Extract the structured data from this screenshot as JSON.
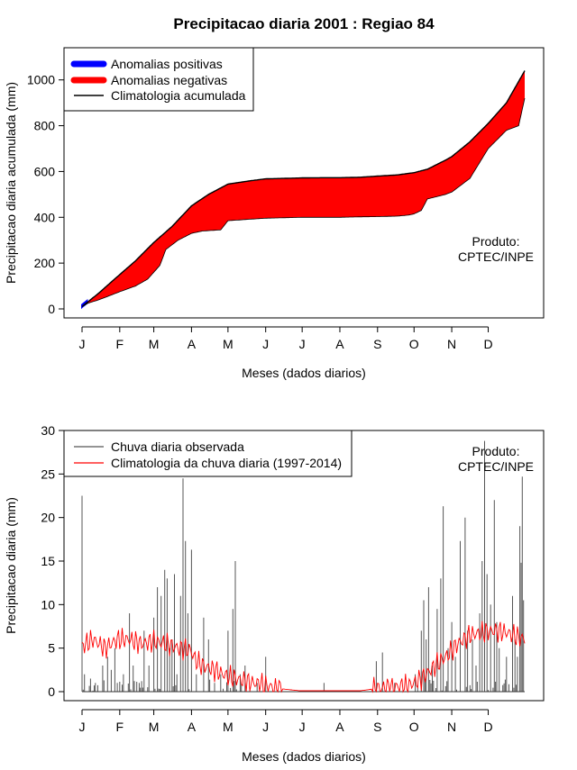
{
  "title": "Precipitacao diaria 2001 : Regiao 84",
  "colors": {
    "positive": "#0000ff",
    "negative": "#ff0000",
    "climatology": "#000000",
    "observed": "#555555",
    "clim_daily": "#ff0000"
  },
  "months": [
    "J",
    "F",
    "M",
    "A",
    "M",
    "J",
    "J",
    "A",
    "S",
    "O",
    "N",
    "D"
  ],
  "chart_data": [
    {
      "type": "area",
      "xlabel": "Meses (dados diarios)",
      "ylabel": "Precipitacao diaria acumulada (mm)",
      "ylim": [
        0,
        1050
      ],
      "yticks": [
        "0",
        "200",
        "400",
        "600",
        "800",
        "1000"
      ],
      "ytick_values": [
        0,
        200,
        400,
        600,
        800,
        1000
      ],
      "legend": [
        "Anomalias positivas",
        "Anomalias negativas",
        "Climatologia acumulada"
      ],
      "product_label": [
        "Produto:",
        "CPTEC/INPE"
      ],
      "climatology_knots": [
        [
          1,
          10
        ],
        [
          15,
          70
        ],
        [
          32,
          150
        ],
        [
          45,
          210
        ],
        [
          60,
          290
        ],
        [
          75,
          360
        ],
        [
          91,
          450
        ],
        [
          105,
          500
        ],
        [
          121,
          545
        ],
        [
          140,
          560
        ],
        [
          152,
          568
        ],
        [
          182,
          572
        ],
        [
          200,
          573
        ],
        [
          213,
          573
        ],
        [
          230,
          575
        ],
        [
          244,
          580
        ],
        [
          260,
          585
        ],
        [
          274,
          595
        ],
        [
          285,
          610
        ],
        [
          300,
          650
        ],
        [
          305,
          665
        ],
        [
          320,
          730
        ],
        [
          335,
          810
        ],
        [
          350,
          900
        ],
        [
          365,
          1040
        ]
      ],
      "observed_knots": [
        [
          1,
          10
        ],
        [
          6,
          25
        ],
        [
          15,
          40
        ],
        [
          32,
          75
        ],
        [
          45,
          100
        ],
        [
          55,
          130
        ],
        [
          65,
          190
        ],
        [
          70,
          260
        ],
        [
          80,
          300
        ],
        [
          91,
          330
        ],
        [
          100,
          340
        ],
        [
          115,
          345
        ],
        [
          121,
          385
        ],
        [
          140,
          392
        ],
        [
          152,
          396
        ],
        [
          182,
          400
        ],
        [
          213,
          400
        ],
        [
          230,
          402
        ],
        [
          244,
          403
        ],
        [
          260,
          405
        ],
        [
          270,
          410
        ],
        [
          274,
          415
        ],
        [
          280,
          430
        ],
        [
          285,
          480
        ],
        [
          300,
          500
        ],
        [
          305,
          510
        ],
        [
          320,
          570
        ],
        [
          335,
          700
        ],
        [
          350,
          780
        ],
        [
          360,
          800
        ],
        [
          365,
          920
        ]
      ]
    },
    {
      "type": "bar",
      "xlabel": "Meses (dados diarios)",
      "ylabel": "Precipitacao diaria (mm)",
      "ylim": [
        0,
        30
      ],
      "yticks": [
        "0",
        "5",
        "10",
        "15",
        "20",
        "25",
        "30"
      ],
      "ytick_values": [
        0,
        5,
        10,
        15,
        20,
        25,
        30
      ],
      "legend": [
        "Chuva diaria observada",
        "Climatologia da chuva diaria (1997-2014)"
      ],
      "product_label": [
        "Produto:",
        "CPTEC/INPE"
      ],
      "observed_spikes": [
        [
          1,
          22.5
        ],
        [
          3,
          2
        ],
        [
          8,
          1.5
        ],
        [
          12,
          1
        ],
        [
          18,
          3
        ],
        [
          22,
          4
        ],
        [
          25,
          2.5
        ],
        [
          28,
          5
        ],
        [
          30,
          1
        ],
        [
          35,
          2
        ],
        [
          40,
          9
        ],
        [
          43,
          3
        ],
        [
          48,
          1
        ],
        [
          52,
          7
        ],
        [
          56,
          3
        ],
        [
          60,
          8.5
        ],
        [
          63,
          12
        ],
        [
          66,
          11
        ],
        [
          69,
          14
        ],
        [
          71,
          13
        ],
        [
          73,
          5
        ],
        [
          75,
          6
        ],
        [
          77,
          13.5
        ],
        [
          79,
          2
        ],
        [
          82,
          11
        ],
        [
          84,
          24.5
        ],
        [
          86,
          17.3
        ],
        [
          88,
          9
        ],
        [
          91,
          16.3
        ],
        [
          95,
          2
        ],
        [
          101,
          8.5
        ],
        [
          105,
          6
        ],
        [
          110,
          1
        ],
        [
          115,
          2
        ],
        [
          121,
          7
        ],
        [
          125,
          9.5
        ],
        [
          127,
          15
        ],
        [
          131,
          2
        ],
        [
          135,
          3
        ],
        [
          145,
          1
        ],
        [
          152,
          4
        ],
        [
          200,
          1
        ],
        [
          243,
          3.5
        ],
        [
          248,
          4.5
        ],
        [
          258,
          1
        ],
        [
          275,
          2
        ],
        [
          280,
          7
        ],
        [
          282,
          10.5
        ],
        [
          284,
          6
        ],
        [
          286,
          12
        ],
        [
          289,
          3
        ],
        [
          293,
          9.5
        ],
        [
          296,
          13
        ],
        [
          298,
          21.3
        ],
        [
          302,
          5
        ],
        [
          305,
          8
        ],
        [
          308,
          4
        ],
        [
          312,
          17.3
        ],
        [
          316,
          20
        ],
        [
          318,
          7
        ],
        [
          322,
          6
        ],
        [
          325,
          3
        ],
        [
          328,
          9
        ],
        [
          330,
          15
        ],
        [
          332,
          28.8
        ],
        [
          334,
          13.5
        ],
        [
          337,
          10
        ],
        [
          340,
          22
        ],
        [
          342,
          8
        ],
        [
          344,
          5
        ],
        [
          350,
          4
        ],
        [
          355,
          11
        ],
        [
          357,
          6
        ],
        [
          359,
          4
        ],
        [
          361,
          19
        ],
        [
          362,
          14.8
        ],
        [
          363,
          24.7
        ],
        [
          364,
          10.5
        ]
      ],
      "clim_knots": [
        [
          1,
          5.2
        ],
        [
          10,
          6
        ],
        [
          20,
          5
        ],
        [
          30,
          6
        ],
        [
          40,
          6
        ],
        [
          50,
          5.5
        ],
        [
          60,
          5.8
        ],
        [
          70,
          5.5
        ],
        [
          80,
          5
        ],
        [
          90,
          4.8
        ],
        [
          95,
          3.5
        ],
        [
          100,
          3
        ],
        [
          110,
          2.5
        ],
        [
          120,
          1.8
        ],
        [
          135,
          1.2
        ],
        [
          150,
          0.8
        ],
        [
          160,
          0.4
        ],
        [
          180,
          0.1
        ],
        [
          230,
          0.1
        ],
        [
          245,
          0.4
        ],
        [
          255,
          0.5
        ],
        [
          270,
          0.7
        ],
        [
          280,
          1.5
        ],
        [
          290,
          2.8
        ],
        [
          300,
          4
        ],
        [
          310,
          5.5
        ],
        [
          320,
          6.5
        ],
        [
          330,
          6.8
        ],
        [
          340,
          7
        ],
        [
          350,
          6.8
        ],
        [
          365,
          6
        ]
      ]
    }
  ]
}
